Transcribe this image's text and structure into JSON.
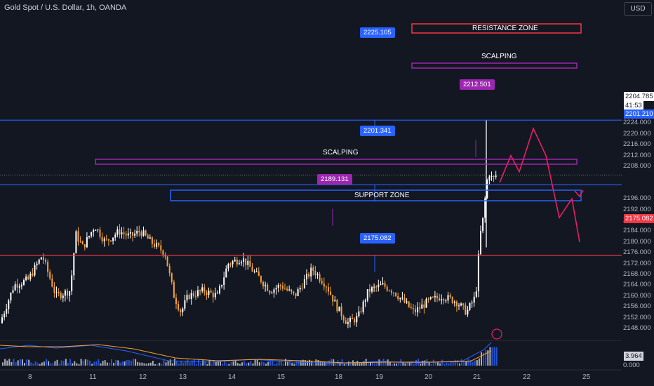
{
  "header": {
    "title": "Gold Spot / U.S. Dollar, 1h, OANDA",
    "currency": "USD"
  },
  "price_axis": {
    "ticks": [
      "2224.000",
      "2220.000",
      "2216.000",
      "2212.000",
      "2208.000",
      "2196.000",
      "2192.000",
      "2188.000",
      "2184.000",
      "2180.000",
      "2176.000",
      "2172.000",
      "2168.000",
      "2164.000",
      "2160.000",
      "2156.000",
      "2152.000",
      "2148.000"
    ],
    "current_price": "2204.785",
    "countdown": "41:53",
    "line_badge_blue": "2201.210",
    "line_badge_red": "2175.082"
  },
  "time_axis": {
    "ticks": [
      "8",
      "11",
      "12",
      "13",
      "14",
      "15",
      "18",
      "19",
      "20",
      "21",
      "22",
      "25"
    ]
  },
  "annotations": {
    "resistance_zone": "RESISTANCE ZONE",
    "scalping_top": "SCALPING",
    "scalping_mid": "SCALPING",
    "support_zone": "SUPPORT ZONE",
    "price_labels": {
      "p2225": "2225.105",
      "p2212": "2212.501",
      "p2201": "2201.341",
      "p2189": "2189.131",
      "p2175": "2175.082"
    }
  },
  "indicator": {
    "value_1": "3.964",
    "value_2": "0.000"
  },
  "colors": {
    "background": "#131722",
    "bull": "#ffffff",
    "bear": "#f7a135",
    "blue_line": "#2962ff",
    "red_line": "#f23645",
    "zone_purple": "#9c27b0",
    "projection": "#e91e63"
  }
}
